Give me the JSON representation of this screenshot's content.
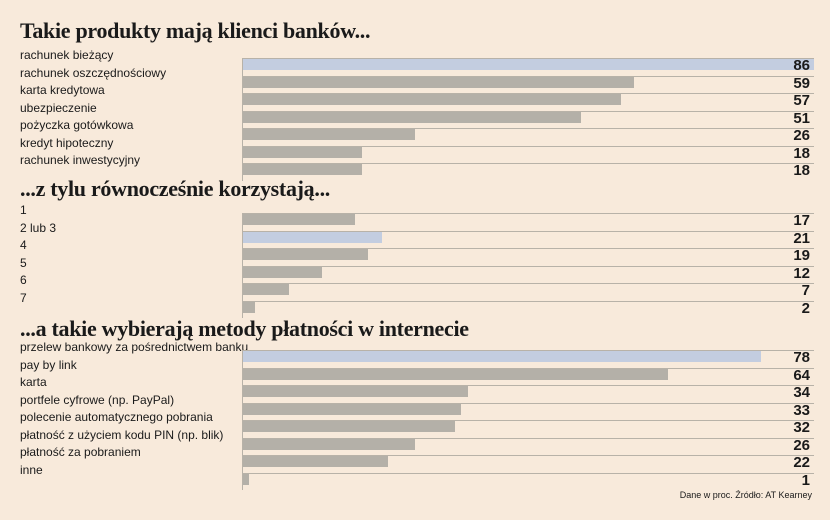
{
  "colors": {
    "background": "#f8eadb",
    "bar": "#b4b0a8",
    "highlight": "#c3cde0"
  },
  "chart_data": [
    {
      "type": "bar",
      "title": "Takie produkty mają klienci banków...",
      "categories": [
        "rachunek bieżący",
        "rachunek oszczędnościowy",
        "karta kredytowa",
        "ubezpieczenie",
        "pożyczka gotówkowa",
        "kredyt hipoteczny",
        "rachunek inwestycyjny"
      ],
      "values": [
        86,
        59,
        57,
        51,
        26,
        18,
        18
      ],
      "highlight_index": 0,
      "xlim": [
        0,
        86
      ]
    },
    {
      "type": "bar",
      "title": "...z tylu równocześnie korzystają...",
      "categories": [
        "1",
        "2 lub 3",
        "4",
        "5",
        "6",
        "7"
      ],
      "values": [
        17,
        21,
        19,
        12,
        7,
        2
      ],
      "highlight_index": 1,
      "xlim": [
        0,
        86
      ]
    },
    {
      "type": "bar",
      "title": "...a takie wybierają metody płatności w internecie",
      "categories": [
        "przelew bankowy za pośrednictwem banku",
        "pay by link",
        "karta",
        "portfele cyfrowe (np. PayPal)",
        "polecenie automatycznego pobrania",
        "płatność z użyciem kodu PIN (np. blik)",
        "płatność za pobraniem",
        "inne"
      ],
      "values": [
        78,
        64,
        34,
        33,
        32,
        26,
        22,
        1
      ],
      "highlight_index": 0,
      "xlim": [
        0,
        86
      ]
    }
  ],
  "source": "Dane w proc. Źródło: AT Kearney"
}
